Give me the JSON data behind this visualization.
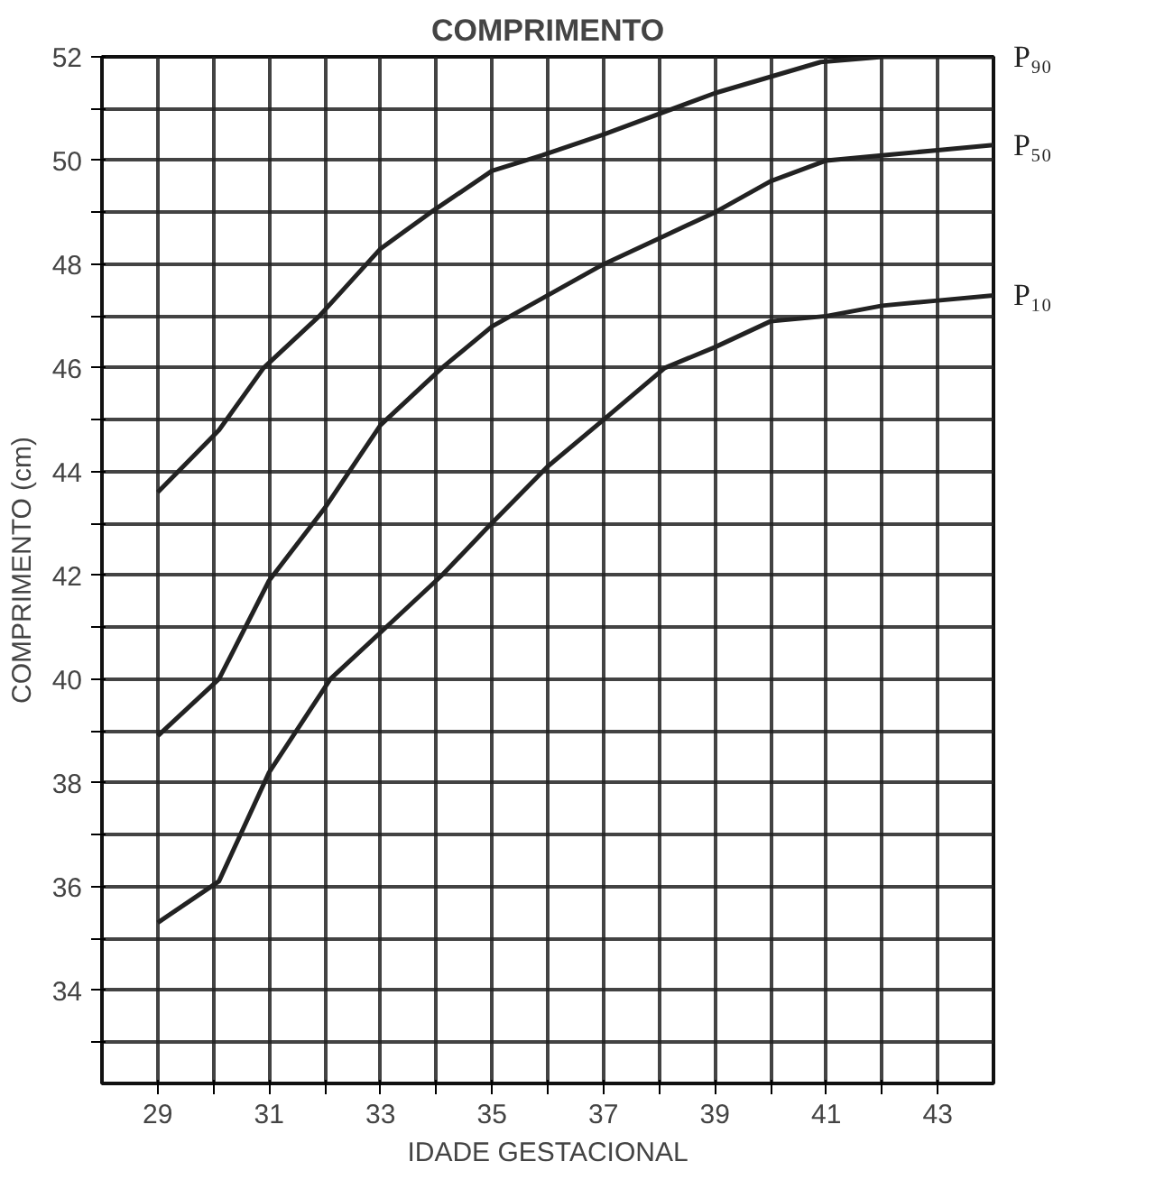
{
  "chart_data": {
    "type": "line",
    "title": "COMPRIMENTO",
    "xlabel": "IDADE GESTACIONAL",
    "ylabel": "COMPRIMENTO (cm)",
    "xlim": [
      28,
      44
    ],
    "ylim": [
      32.2,
      52
    ],
    "xticks": [
      29,
      {
        "value": 30,
        "label": null
      },
      31,
      {
        "value": 32,
        "label": null
      },
      33,
      {
        "value": 34,
        "label": null
      },
      35,
      {
        "value": 36,
        "label": null
      },
      37,
      {
        "value": 38,
        "label": null
      },
      39,
      {
        "value": 40,
        "label": null
      },
      41,
      {
        "value": 42,
        "label": null
      },
      43
    ],
    "yticks": [
      {
        "value": 33,
        "label": null
      },
      34,
      {
        "value": 35,
        "label": null
      },
      36,
      {
        "value": 37,
        "label": null
      },
      38,
      {
        "value": 39,
        "label": null
      },
      40,
      {
        "value": 41,
        "label": null
      },
      42,
      {
        "value": 43,
        "label": null
      },
      44,
      {
        "value": 45,
        "label": null
      },
      46,
      {
        "value": 47,
        "label": null
      },
      48,
      {
        "value": 49,
        "label": null
      },
      50,
      {
        "value": 51,
        "label": null
      },
      52
    ],
    "grid": true,
    "line_style": "solid",
    "marker": "none",
    "series": [
      {
        "name": "P₉₀",
        "color": "#222222",
        "x": [
          29,
          30.1,
          30.9,
          31.9,
          33,
          33.9,
          35,
          35.9,
          37,
          39,
          40.9,
          42,
          43,
          44
        ],
        "values": [
          43.6,
          44.8,
          46.0,
          47.0,
          48.3,
          49.0,
          49.8,
          50.1,
          50.5,
          51.3,
          51.9,
          52,
          52,
          52
        ]
      },
      {
        "name": "P₅₀",
        "color": "#222222",
        "x": [
          29,
          30.1,
          31,
          32,
          33,
          34.1,
          35,
          36,
          37,
          38,
          39,
          40,
          41,
          42,
          43,
          44
        ],
        "values": [
          38.9,
          40.0,
          41.9,
          43.3,
          44.9,
          46.0,
          46.8,
          47.4,
          48.0,
          48.5,
          49.0,
          49.6,
          50.0,
          50.1,
          50.2,
          50.3
        ]
      },
      {
        "name": "P₁₀",
        "color": "#222222",
        "x": [
          29,
          30.1,
          31,
          32.1,
          33.1,
          34.1,
          34.9,
          36,
          37,
          38.1,
          39,
          40,
          41,
          42,
          43,
          44
        ],
        "values": [
          35.3,
          36.1,
          38.2,
          40.0,
          41.0,
          42.0,
          42.9,
          44.1,
          45.0,
          46.0,
          46.4,
          46.9,
          47.0,
          47.2,
          47.3,
          47.4
        ]
      }
    ]
  }
}
